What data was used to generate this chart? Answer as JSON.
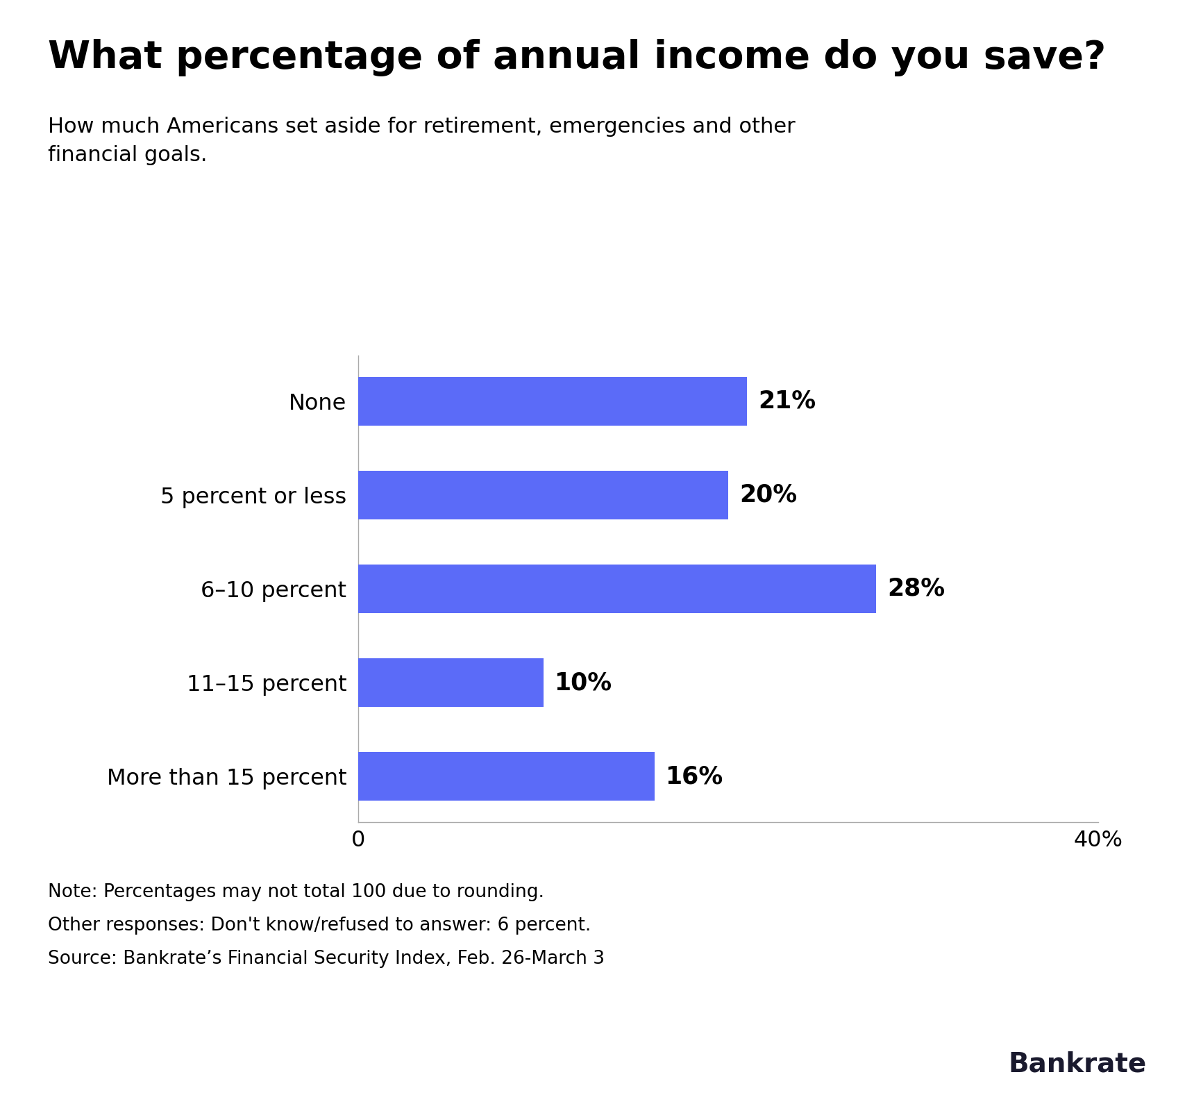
{
  "title": "What percentage of annual income do you save?",
  "subtitle": "How much Americans set aside for retirement, emergencies and other\nfinancial goals.",
  "categories": [
    "None",
    "5 percent or less",
    "6–10 percent",
    "11–15 percent",
    "More than 15 percent"
  ],
  "values": [
    21,
    20,
    28,
    10,
    16
  ],
  "labels": [
    "21%",
    "20%",
    "28%",
    "10%",
    "16%"
  ],
  "bar_color": "#5B6BF8",
  "xlim": [
    0,
    40
  ],
  "xticks": [
    0,
    40
  ],
  "xticklabels": [
    "0",
    "40%"
  ],
  "note_lines": [
    "Note: Percentages may not total 100 due to rounding.",
    "Other responses: Don't know/refused to answer: 6 percent.",
    "Source: Bankrate’s Financial Security Index, Feb. 26-March 3"
  ],
  "brand": "Bankrate",
  "background_color": "#ffffff",
  "title_fontsize": 40,
  "subtitle_fontsize": 22,
  "category_fontsize": 23,
  "label_fontsize": 25,
  "note_fontsize": 19,
  "brand_fontsize": 28
}
